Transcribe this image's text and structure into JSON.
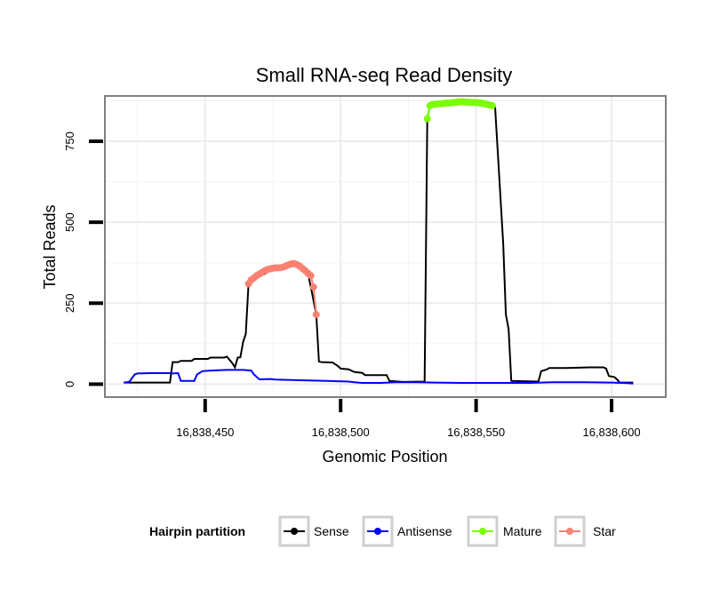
{
  "chart_data": {
    "type": "line",
    "title": "Small RNA-seq Read Density",
    "xlabel": "Genomic Position",
    "ylabel": "Total Reads",
    "xlim": [
      16838413,
      16838620
    ],
    "ylim": [
      -40,
      890
    ],
    "x_ticks": [
      16838450,
      16838500,
      16838550,
      16838600
    ],
    "x_tick_labels": [
      "16,838,450",
      "16,838,500",
      "16,838,550",
      "16,838,600"
    ],
    "y_ticks": [
      0,
      250,
      500,
      750
    ],
    "y_tick_labels": [
      "0",
      "250",
      "500",
      "750"
    ],
    "grid": true,
    "legend": {
      "title": "Hairpin partition",
      "position": "bottom",
      "entries": [
        {
          "name": "Sense",
          "color": "#000000"
        },
        {
          "name": "Antisense",
          "color": "#0000ff"
        },
        {
          "name": "Mature",
          "color": "#7cfc00"
        },
        {
          "name": "Star",
          "color": "#fa8072"
        }
      ]
    },
    "series": [
      {
        "name": "Sense",
        "color": "#000000",
        "points": [
          [
            16838420,
            5
          ],
          [
            16838437,
            5
          ],
          [
            16838438,
            68
          ],
          [
            16838440,
            68
          ],
          [
            16838441,
            72
          ],
          [
            16838445,
            72
          ],
          [
            16838446,
            78
          ],
          [
            16838451,
            78
          ],
          [
            16838452,
            82
          ],
          [
            16838457,
            82
          ],
          [
            16838458,
            85
          ],
          [
            16838460,
            65
          ],
          [
            16838461,
            52
          ],
          [
            16838462,
            82
          ],
          [
            16838463,
            83
          ],
          [
            16838464,
            130
          ],
          [
            16838465,
            155
          ],
          [
            16838466,
            310
          ],
          [
            16838467,
            325
          ],
          [
            16838472,
            340
          ],
          [
            16838475,
            358
          ],
          [
            16838478,
            360
          ],
          [
            16838482,
            372
          ],
          [
            16838485,
            365
          ],
          [
            16838488,
            340
          ],
          [
            16838489,
            300
          ],
          [
            16838491,
            215
          ],
          [
            16838492,
            70
          ],
          [
            16838493,
            68
          ],
          [
            16838497,
            67
          ],
          [
            16838499,
            56
          ],
          [
            16838500,
            48
          ],
          [
            16838503,
            46
          ],
          [
            16838505,
            38
          ],
          [
            16838508,
            35
          ],
          [
            16838509,
            28
          ],
          [
            16838517,
            28
          ],
          [
            16838518,
            10
          ],
          [
            16838523,
            7
          ],
          [
            16838531,
            8
          ],
          [
            16838532,
            820
          ],
          [
            16838533,
            860
          ],
          [
            16838540,
            865
          ],
          [
            16838548,
            870
          ],
          [
            16838556,
            862
          ],
          [
            16838557,
            855
          ],
          [
            16838560,
            435
          ],
          [
            16838561,
            215
          ],
          [
            16838562,
            170
          ],
          [
            16838563,
            10
          ],
          [
            16838573,
            8
          ],
          [
            16838574,
            40
          ],
          [
            16838576,
            45
          ],
          [
            16838577,
            50
          ],
          [
            16838583,
            50
          ],
          [
            16838592,
            52
          ],
          [
            16838597,
            52
          ],
          [
            16838598,
            48
          ],
          [
            16838599,
            25
          ],
          [
            16838601,
            22
          ],
          [
            16838602,
            15
          ],
          [
            16838603,
            5
          ],
          [
            16838608,
            5
          ]
        ]
      },
      {
        "name": "Antisense",
        "color": "#0000ff",
        "points": [
          [
            16838420,
            5
          ],
          [
            16838422,
            7
          ],
          [
            16838424,
            30
          ],
          [
            16838425,
            33
          ],
          [
            16838430,
            34
          ],
          [
            16838437,
            34
          ],
          [
            16838438,
            33
          ],
          [
            16838440,
            34
          ],
          [
            16838441,
            10
          ],
          [
            16838446,
            10
          ],
          [
            16838447,
            30
          ],
          [
            16838449,
            40
          ],
          [
            16838452,
            42
          ],
          [
            16838458,
            44
          ],
          [
            16838464,
            44
          ],
          [
            16838467,
            42
          ],
          [
            16838468,
            30
          ],
          [
            16838470,
            15
          ],
          [
            16838474,
            16
          ],
          [
            16838476,
            14
          ],
          [
            16838482,
            13
          ],
          [
            16838490,
            11
          ],
          [
            16838495,
            10
          ],
          [
            16838503,
            8
          ],
          [
            16838505,
            6
          ],
          [
            16838508,
            4
          ],
          [
            16838515,
            4
          ],
          [
            16838520,
            6
          ],
          [
            16838528,
            6
          ],
          [
            16838535,
            5
          ],
          [
            16838545,
            4
          ],
          [
            16838560,
            4
          ],
          [
            16838570,
            4
          ],
          [
            16838578,
            6
          ],
          [
            16838590,
            6
          ],
          [
            16838600,
            5
          ],
          [
            16838606,
            3
          ],
          [
            16838608,
            2
          ]
        ]
      },
      {
        "name": "Mature",
        "color": "#7cfc00",
        "points": [
          [
            16838532,
            820
          ],
          [
            16838533,
            860
          ],
          [
            16838534,
            864
          ],
          [
            16838535,
            864
          ],
          [
            16838536,
            866
          ],
          [
            16838537,
            866
          ],
          [
            16838538,
            867
          ],
          [
            16838539,
            868
          ],
          [
            16838540,
            868
          ],
          [
            16838541,
            869
          ],
          [
            16838542,
            870
          ],
          [
            16838543,
            871
          ],
          [
            16838544,
            872
          ],
          [
            16838545,
            872
          ],
          [
            16838546,
            871
          ],
          [
            16838547,
            871
          ],
          [
            16838548,
            870
          ],
          [
            16838549,
            870
          ],
          [
            16838550,
            869
          ],
          [
            16838551,
            869
          ],
          [
            16838552,
            868
          ],
          [
            16838553,
            866
          ],
          [
            16838554,
            864
          ],
          [
            16838555,
            862
          ],
          [
            16838556,
            860
          ]
        ]
      },
      {
        "name": "Star",
        "color": "#fa8072",
        "points": [
          [
            16838466,
            310
          ],
          [
            16838467,
            322
          ],
          [
            16838468,
            328
          ],
          [
            16838469,
            335
          ],
          [
            16838470,
            340
          ],
          [
            16838471,
            345
          ],
          [
            16838472,
            350
          ],
          [
            16838473,
            354
          ],
          [
            16838474,
            356
          ],
          [
            16838475,
            358
          ],
          [
            16838476,
            359
          ],
          [
            16838477,
            359
          ],
          [
            16838478,
            360
          ],
          [
            16838479,
            362
          ],
          [
            16838480,
            366
          ],
          [
            16838481,
            369
          ],
          [
            16838482,
            372
          ],
          [
            16838483,
            372
          ],
          [
            16838484,
            369
          ],
          [
            16838485,
            364
          ],
          [
            16838486,
            357
          ],
          [
            16838487,
            350
          ],
          [
            16838488,
            342
          ],
          [
            16838489,
            335
          ],
          [
            16838490,
            300
          ],
          [
            16838491,
            215
          ]
        ]
      }
    ]
  }
}
